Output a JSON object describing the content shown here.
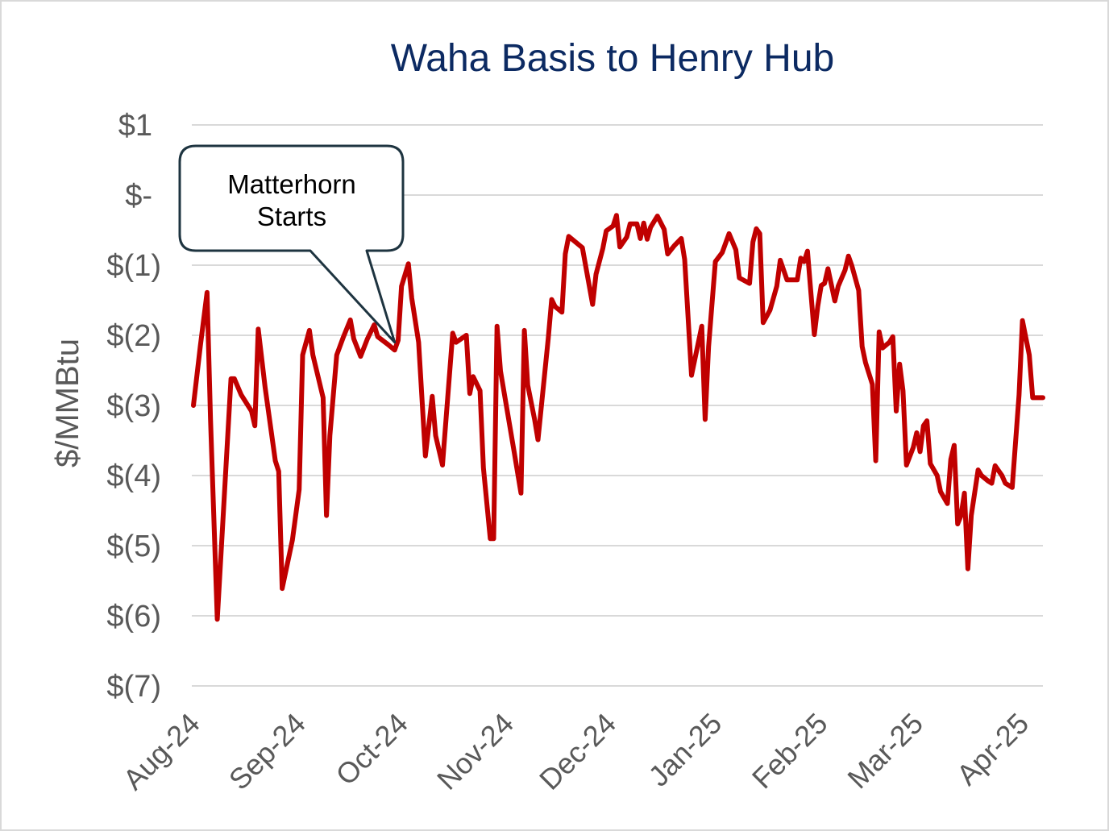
{
  "chart_data": {
    "type": "line",
    "title": "Waha Basis to Henry Hub",
    "ylabel": "$/MMBtu",
    "x_tick_labels": [
      "Aug-24",
      "Sep-24",
      "Oct-24",
      "Nov-24",
      "Dec-24",
      "Jan-25",
      "Feb-25",
      "Mar-25",
      "Apr-25"
    ],
    "y_ticks": [
      1,
      0,
      -1,
      -2,
      -3,
      -4,
      -5,
      -6,
      -7
    ],
    "y_tick_labels": [
      "$1",
      "$-",
      "$(1)",
      "$(2)",
      "$(3)",
      "$(4)",
      "$(5)",
      "$(6)",
      "$(7)"
    ],
    "ylim": [
      -7,
      1
    ],
    "xlim": [
      "2024-08-01",
      "2025-04-07"
    ],
    "grid_y": true,
    "x": [
      "2024-08-01",
      "2024-08-03",
      "2024-08-05",
      "2024-08-06",
      "2024-08-08",
      "2024-08-12",
      "2024-08-13",
      "2024-08-15",
      "2024-08-18",
      "2024-08-19",
      "2024-08-20",
      "2024-08-22",
      "2024-08-25",
      "2024-08-26",
      "2024-08-27",
      "2024-08-30",
      "2024-09-01",
      "2024-09-02",
      "2024-09-04",
      "2024-09-05",
      "2024-09-08",
      "2024-09-09",
      "2024-09-10",
      "2024-09-12",
      "2024-09-14",
      "2024-09-16",
      "2024-09-17",
      "2024-09-19",
      "2024-09-21",
      "2024-09-23",
      "2024-09-24",
      "2024-09-27",
      "2024-09-29",
      "2024-09-30",
      "2024-10-01",
      "2024-10-03",
      "2024-10-04",
      "2024-10-06",
      "2024-10-08",
      "2024-10-10",
      "2024-10-11",
      "2024-10-13",
      "2024-10-16",
      "2024-10-17",
      "2024-10-20",
      "2024-10-21",
      "2024-10-22",
      "2024-10-24",
      "2024-10-25",
      "2024-10-27",
      "2024-10-28",
      "2024-10-29",
      "2024-10-30",
      "2024-11-01",
      "2024-11-03",
      "2024-11-05",
      "2024-11-06",
      "2024-11-07",
      "2024-11-09",
      "2024-11-10",
      "2024-11-13",
      "2024-11-14",
      "2024-11-15",
      "2024-11-17",
      "2024-11-18",
      "2024-11-19",
      "2024-11-21",
      "2024-11-23",
      "2024-11-26",
      "2024-11-27",
      "2024-11-29",
      "2024-11-30",
      "2024-12-02",
      "2024-12-03",
      "2024-12-04",
      "2024-12-06",
      "2024-12-07",
      "2024-12-09",
      "2024-12-10",
      "2024-12-11",
      "2024-12-12",
      "2024-12-13",
      "2024-12-15",
      "2024-12-17",
      "2024-12-18",
      "2024-12-20",
      "2024-12-22",
      "2024-12-23",
      "2024-12-25",
      "2024-12-28",
      "2024-12-29",
      "2024-12-30",
      "2025-01-01",
      "2025-01-03",
      "2025-01-05",
      "2025-01-07",
      "2025-01-08",
      "2025-01-11",
      "2025-01-12",
      "2025-01-13",
      "2025-01-14",
      "2025-01-15",
      "2025-01-17",
      "2025-01-19",
      "2025-01-20",
      "2025-01-22",
      "2025-01-23",
      "2025-01-25",
      "2025-01-26",
      "2025-01-27",
      "2025-01-28",
      "2025-01-30",
      "2025-01-31",
      "2025-02-01",
      "2025-02-02",
      "2025-02-03",
      "2025-02-05",
      "2025-02-06",
      "2025-02-08",
      "2025-02-09",
      "2025-02-10",
      "2025-02-12",
      "2025-02-13",
      "2025-02-14",
      "2025-02-16",
      "2025-02-17",
      "2025-02-18",
      "2025-02-19",
      "2025-02-21",
      "2025-02-22",
      "2025-02-23",
      "2025-02-24",
      "2025-02-25",
      "2025-02-26",
      "2025-02-28",
      "2025-03-01",
      "2025-03-02",
      "2025-03-03",
      "2025-03-04",
      "2025-03-05",
      "2025-03-07",
      "2025-03-08",
      "2025-03-10",
      "2025-03-11",
      "2025-03-12",
      "2025-03-13",
      "2025-03-14",
      "2025-03-15",
      "2025-03-16",
      "2025-03-17",
      "2025-03-19",
      "2025-03-20",
      "2025-03-22",
      "2025-03-23",
      "2025-03-24",
      "2025-03-26",
      "2025-03-27",
      "2025-03-29",
      "2025-03-31",
      "2025-04-01",
      "2025-04-03",
      "2025-04-04",
      "2025-04-07"
    ],
    "series": [
      {
        "color": "#c00000",
        "values": [
          -3.0,
          -2.16,
          -1.39,
          -3.2,
          -6.05,
          -2.62,
          -2.62,
          -2.85,
          -3.08,
          -3.29,
          -1.91,
          -2.74,
          -3.79,
          -3.94,
          -5.61,
          -4.92,
          -4.2,
          -2.28,
          -1.93,
          -2.28,
          -2.89,
          -4.57,
          -3.43,
          -2.28,
          -2.02,
          -1.78,
          -2.05,
          -2.3,
          -2.05,
          -1.85,
          -2.02,
          -2.13,
          -2.21,
          -2.07,
          -1.3,
          -0.98,
          -1.47,
          -2.1,
          -3.72,
          -2.87,
          -3.43,
          -3.85,
          -1.97,
          -2.1,
          -2.0,
          -2.83,
          -2.59,
          -2.79,
          -3.89,
          -4.9,
          -4.9,
          -1.87,
          -2.51,
          -3.08,
          -3.66,
          -4.25,
          -1.93,
          -2.71,
          -3.2,
          -3.49,
          -2.05,
          -1.49,
          -1.59,
          -1.67,
          -0.84,
          -0.59,
          -0.67,
          -0.75,
          -1.56,
          -1.13,
          -0.76,
          -0.51,
          -0.44,
          -0.29,
          -0.74,
          -0.6,
          -0.41,
          -0.41,
          -0.62,
          -0.4,
          -0.63,
          -0.46,
          -0.3,
          -0.49,
          -0.84,
          -0.72,
          -0.62,
          -0.92,
          -2.57,
          -1.87,
          -3.2,
          -2.16,
          -0.95,
          -0.82,
          -0.55,
          -0.78,
          -1.18,
          -1.26,
          -0.67,
          -0.48,
          -0.55,
          -1.82,
          -1.64,
          -1.3,
          -0.93,
          -1.21,
          -1.21,
          -1.21,
          -0.9,
          -0.95,
          -0.8,
          -1.99,
          -1.59,
          -1.29,
          -1.26,
          -1.05,
          -1.51,
          -1.3,
          -1.07,
          -0.87,
          -1.01,
          -1.36,
          -2.16,
          -2.39,
          -2.7,
          -3.79,
          -1.95,
          -2.18,
          -2.1,
          -2.02,
          -3.08,
          -2.41,
          -2.79,
          -3.85,
          -3.6,
          -3.39,
          -3.66,
          -3.29,
          -3.22,
          -3.83,
          -4.0,
          -4.23,
          -4.4,
          -3.77,
          -3.57,
          -4.69,
          -4.57,
          -4.25,
          -5.33,
          -4.57,
          -3.92,
          -4.0,
          -4.08,
          -4.11,
          -3.86,
          -4.0,
          -4.11,
          -4.17,
          -2.85,
          -1.79,
          -2.28,
          -2.89,
          -2.89
        ]
      }
    ],
    "annotations": [
      {
        "lines": [
          "Matterhorn",
          "Starts"
        ],
        "x": "2024-09-29",
        "y": -2.1
      }
    ]
  },
  "colors": {
    "title": "#0c2a62",
    "axis_text": "#595959",
    "gridline": "#d9d9d9",
    "callout_border": "#1e3440"
  }
}
